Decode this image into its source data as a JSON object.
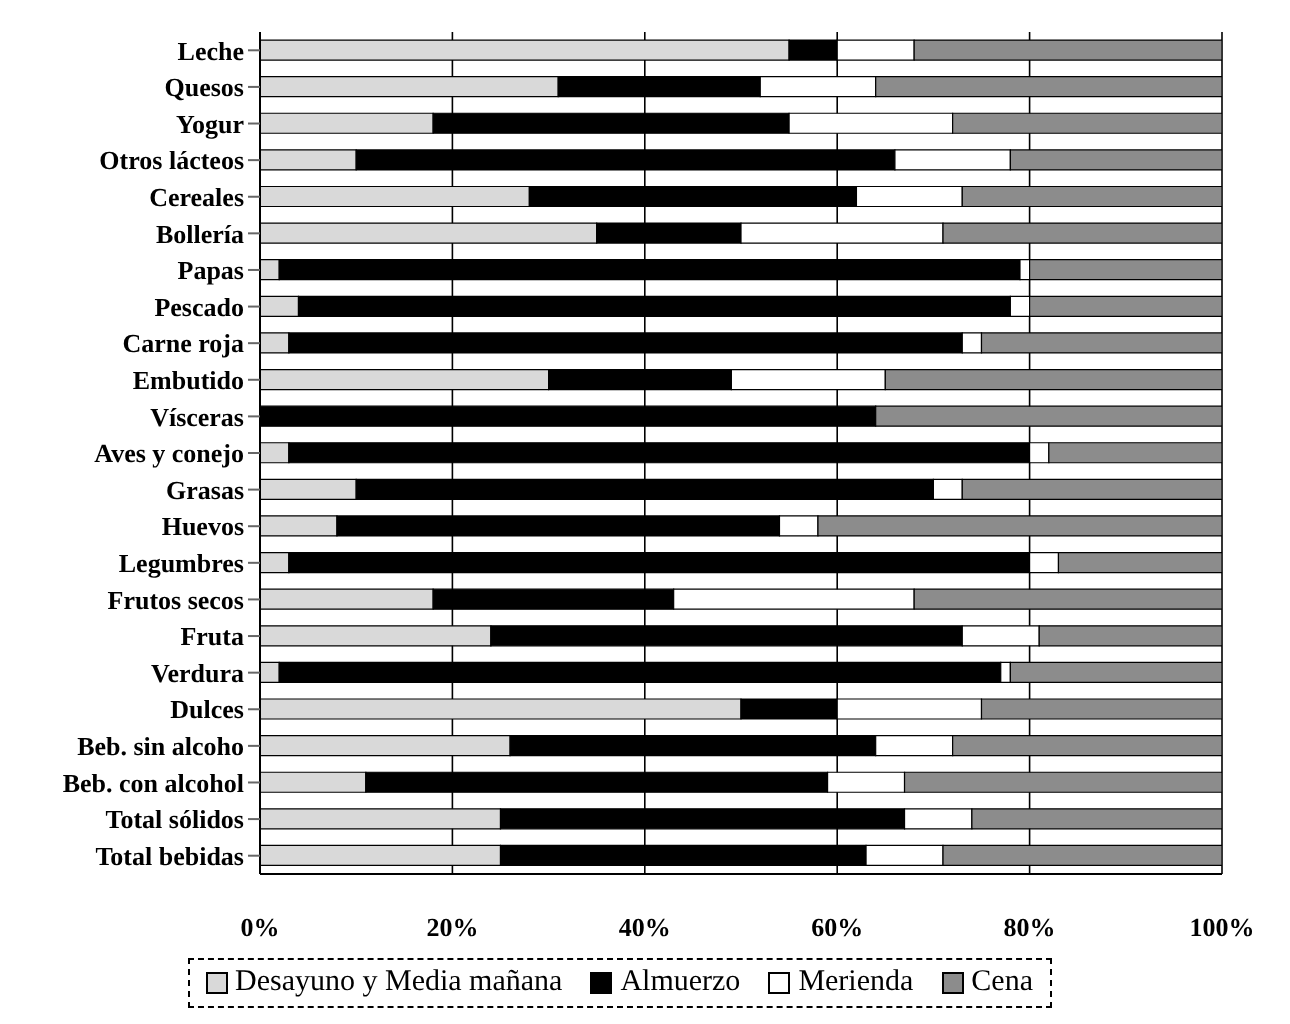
{
  "chart_data": {
    "type": "bar",
    "orientation": "horizontal",
    "stacked": true,
    "categories": [
      "Leche",
      "Quesos",
      "Yogur",
      "Otros lácteos",
      "Cereales",
      "Bollería",
      "Papas",
      "Pescado",
      "Carne roja",
      "Embutido",
      "Vísceras",
      "Aves y conejo",
      "Grasas",
      "Huevos",
      "Legumbres",
      "Frutos secos",
      "Fruta",
      "Verdura",
      "Dulces",
      "Beb. sin alcoho",
      "Beb. con alcohol",
      "Total sólidos",
      "Total bebidas"
    ],
    "series": [
      {
        "name": "Desayuno y Media mañana",
        "color": "#d9d9d9",
        "values": [
          55,
          31,
          18,
          10,
          28,
          35,
          2,
          4,
          3,
          30,
          0,
          3,
          10,
          8,
          3,
          18,
          24,
          2,
          50,
          26,
          11,
          25,
          25
        ]
      },
      {
        "name": "Almuerzo",
        "color": "#000000",
        "values": [
          5,
          21,
          37,
          56,
          34,
          15,
          77,
          74,
          70,
          19,
          64,
          77,
          60,
          46,
          77,
          25,
          49,
          75,
          10,
          38,
          48,
          42,
          38
        ]
      },
      {
        "name": "Merienda",
        "color": "#ffffff",
        "values": [
          8,
          12,
          17,
          12,
          11,
          21,
          1,
          2,
          2,
          16,
          0,
          2,
          3,
          4,
          3,
          25,
          8,
          1,
          15,
          8,
          8,
          7,
          8
        ]
      },
      {
        "name": "Cena",
        "color": "#8c8c8c",
        "values": [
          32,
          36,
          28,
          22,
          27,
          29,
          20,
          20,
          25,
          35,
          36,
          18,
          27,
          42,
          17,
          32,
          19,
          22,
          25,
          28,
          33,
          26,
          29
        ]
      }
    ],
    "xlim": [
      0,
      100
    ],
    "xticks": [
      {
        "value": 0,
        "label": "0%"
      },
      {
        "value": 20,
        "label": "20%"
      },
      {
        "value": 40,
        "label": "40%"
      },
      {
        "value": 60,
        "label": "60%"
      },
      {
        "value": 80,
        "label": "80%"
      },
      {
        "value": 100,
        "label": "100%"
      }
    ],
    "grid": "x",
    "legend": "bottom"
  }
}
